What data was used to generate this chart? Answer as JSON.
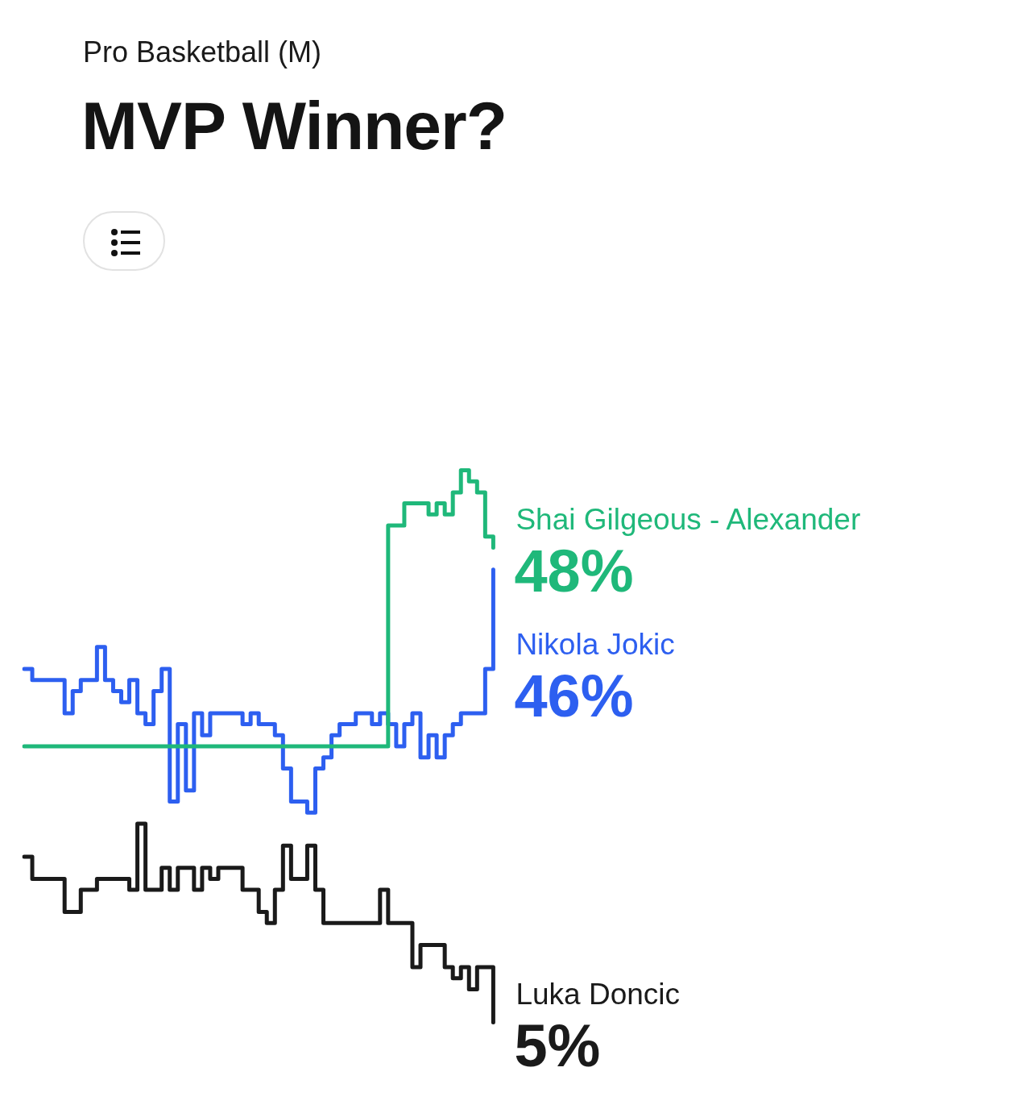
{
  "chart_data": {
    "type": "step",
    "subtitle": "Pro Basketball (M)",
    "title": "MVP Winner?",
    "categories": [
      null,
      null,
      null,
      null,
      null,
      null,
      null,
      null,
      null,
      null,
      null,
      null,
      null,
      null,
      null,
      null,
      null,
      null,
      null,
      null,
      null,
      null,
      null,
      null,
      null,
      null,
      null,
      null,
      null,
      null,
      null,
      null,
      null,
      null,
      null,
      null,
      null,
      null,
      null,
      null,
      null,
      null,
      null,
      null,
      null,
      null,
      null,
      null,
      null,
      null,
      null,
      null,
      null,
      null,
      null,
      null,
      null,
      null,
      null,
      null,
      null,
      null,
      null,
      null,
      null,
      null,
      null,
      null,
      null,
      null,
      null,
      null,
      null,
      null,
      null,
      null,
      null,
      null,
      null,
      null,
      null,
      null,
      null,
      null,
      null,
      null,
      null,
      null,
      null,
      null,
      null,
      null,
      null,
      null,
      null,
      null,
      null,
      null,
      null,
      null,
      null,
      null,
      null,
      null,
      null,
      null,
      null,
      null,
      null,
      null,
      null,
      null,
      null,
      null,
      null,
      null,
      null,
      null,
      null,
      null,
      null,
      null
    ],
    "series": [
      {
        "name": "Shai Gilgeous - Alexander",
        "color": "#1fb87a",
        "values": [
          30,
          30,
          30,
          30,
          30,
          30,
          30,
          30,
          30,
          30,
          30,
          30,
          30,
          30,
          30,
          30,
          30,
          30,
          30,
          30,
          30,
          30,
          30,
          30,
          30,
          30,
          30,
          30,
          30,
          30,
          30,
          30,
          30,
          30,
          30,
          30,
          30,
          30,
          30,
          30,
          30,
          30,
          30,
          30,
          30,
          50,
          50,
          52,
          52,
          52,
          51,
          52,
          51,
          53,
          55,
          54,
          53,
          49,
          48,
          null,
          null,
          null,
          null,
          null,
          null,
          null,
          null,
          null,
          null,
          null,
          null,
          null,
          null,
          null,
          null,
          null,
          null,
          null,
          null,
          null,
          null,
          null,
          null,
          null,
          null,
          null,
          null,
          null,
          null,
          null,
          null,
          null,
          null,
          null,
          null,
          null,
          null,
          null,
          null,
          null,
          null,
          null,
          null,
          null,
          null,
          null,
          null,
          null,
          null,
          null,
          null,
          null,
          null,
          null,
          null,
          null,
          null,
          null,
          null,
          null,
          null,
          null
        ],
        "value_labels": [
          null,
          null,
          null,
          null,
          null,
          null,
          null,
          null,
          null,
          null,
          null,
          null,
          null,
          null,
          null,
          null,
          null,
          null,
          null,
          null,
          null,
          null,
          null,
          null,
          null,
          null,
          null,
          null,
          null,
          null,
          null,
          null,
          null,
          null,
          null,
          null,
          null,
          null,
          null,
          null,
          null,
          null,
          null,
          null,
          null,
          null,
          null,
          null,
          null,
          null,
          null,
          null,
          null,
          null,
          null,
          null,
          null,
          null,
          "48%",
          null,
          null,
          null,
          null,
          null,
          null,
          null,
          null,
          null,
          null,
          null,
          null,
          null,
          null,
          null,
          null,
          null,
          null,
          null,
          null,
          null,
          null,
          null,
          null,
          null,
          null,
          null,
          null,
          null,
          null,
          null,
          null,
          null,
          null,
          null,
          null,
          null,
          null,
          null,
          null,
          null,
          null,
          null,
          null,
          null,
          null,
          null,
          null,
          null,
          null,
          null,
          null,
          null,
          null,
          null,
          null,
          null,
          null,
          null,
          null,
          null,
          null,
          null
        ]
      },
      {
        "name": "Nikola Jokic",
        "color": "#2d5ff0",
        "values": [
          37,
          36,
          36,
          36,
          36,
          33,
          35,
          36,
          36,
          39,
          36,
          35,
          34,
          36,
          33,
          32,
          35,
          37,
          25,
          32,
          26,
          33,
          31,
          33,
          33,
          33,
          33,
          32,
          33,
          32,
          32,
          31,
          28,
          25,
          25,
          24,
          28,
          29,
          31,
          32,
          32,
          33,
          33,
          32,
          33,
          32,
          30,
          32,
          33,
          29,
          31,
          29,
          31,
          32,
          33,
          33,
          33,
          37,
          46,
          null,
          null,
          null,
          null,
          null,
          null,
          null,
          null,
          null,
          null,
          null,
          null,
          null,
          null,
          null,
          null,
          null,
          null,
          null,
          null,
          null,
          null,
          null,
          null,
          null,
          null,
          null,
          null,
          null,
          null,
          null,
          null,
          null,
          null,
          null,
          null,
          null,
          null,
          null,
          null,
          null,
          null,
          null,
          null,
          null,
          null,
          null,
          null,
          null,
          null,
          null,
          null,
          null,
          null,
          null,
          null,
          null,
          null,
          null,
          null,
          null,
          null,
          null
        ],
        "value_labels": [
          null,
          null,
          null,
          null,
          null,
          null,
          null,
          null,
          null,
          null,
          null,
          null,
          null,
          null,
          null,
          null,
          null,
          null,
          null,
          null,
          null,
          null,
          null,
          null,
          null,
          null,
          null,
          null,
          null,
          null,
          null,
          null,
          null,
          null,
          null,
          null,
          null,
          null,
          null,
          null,
          null,
          null,
          null,
          null,
          null,
          null,
          null,
          null,
          null,
          null,
          null,
          null,
          null,
          null,
          null,
          null,
          null,
          null,
          "46%",
          null,
          null,
          null,
          null,
          null,
          null,
          null,
          null,
          null,
          null,
          null,
          null,
          null,
          null,
          null,
          null,
          null,
          null,
          null,
          null,
          null,
          null,
          null,
          null,
          null,
          null,
          null,
          null,
          null,
          null,
          null,
          null,
          null,
          null,
          null,
          null,
          null,
          null,
          null,
          null,
          null,
          null,
          null,
          null,
          null,
          null,
          null,
          null,
          null,
          null,
          null,
          null,
          null,
          null,
          null,
          null,
          null,
          null,
          null,
          null,
          null,
          null,
          null
        ]
      },
      {
        "name": "Luka Doncic",
        "color": "#1a1a1a",
        "values": [
          20,
          18,
          18,
          18,
          18,
          15,
          15,
          17,
          17,
          18,
          18,
          18,
          18,
          17,
          23,
          17,
          17,
          19,
          17,
          19,
          19,
          17,
          19,
          18,
          19,
          19,
          19,
          17,
          17,
          15,
          14,
          17,
          21,
          18,
          18,
          21,
          17,
          14,
          14,
          14,
          14,
          14,
          14,
          14,
          17,
          14,
          14,
          14,
          10,
          12,
          12,
          12,
          10,
          9,
          10,
          8,
          10,
          10,
          5,
          null,
          null,
          null,
          null,
          null,
          null,
          null,
          null,
          null,
          null,
          null,
          null,
          null,
          null,
          null,
          null,
          null,
          null,
          null,
          null,
          null,
          null,
          null,
          null,
          null,
          null,
          null,
          null,
          null,
          null,
          null,
          null,
          null,
          null,
          null,
          null,
          null,
          null,
          null,
          null,
          null,
          null,
          null,
          null,
          null,
          null,
          null,
          null,
          null,
          null,
          null,
          null,
          null,
          null,
          null,
          null,
          null,
          null,
          null,
          null,
          null,
          null,
          null
        ],
        "value_labels": [
          null,
          null,
          null,
          null,
          null,
          null,
          null,
          null,
          null,
          null,
          null,
          null,
          null,
          null,
          null,
          null,
          null,
          null,
          null,
          null,
          null,
          null,
          null,
          null,
          null,
          null,
          null,
          null,
          null,
          null,
          null,
          null,
          null,
          null,
          null,
          null,
          null,
          null,
          null,
          null,
          null,
          null,
          null,
          null,
          null,
          null,
          null,
          null,
          null,
          null,
          null,
          null,
          null,
          null,
          null,
          null,
          null,
          null,
          "5%",
          null,
          null,
          null,
          null,
          null,
          null,
          null,
          null,
          null,
          null,
          null,
          null,
          null,
          null,
          null,
          null,
          null,
          null,
          null,
          null,
          null,
          null,
          null,
          null,
          null,
          null,
          null,
          null,
          null,
          null,
          null,
          null,
          null,
          null,
          null,
          null,
          null,
          null,
          null,
          null,
          null,
          null,
          null,
          null,
          null,
          null,
          null,
          null,
          null,
          null,
          null,
          null,
          null,
          null,
          null,
          null,
          null,
          null,
          null,
          null,
          null,
          null,
          null
        ]
      }
    ],
    "marker": "none",
    "tick_labels": false
  }
}
